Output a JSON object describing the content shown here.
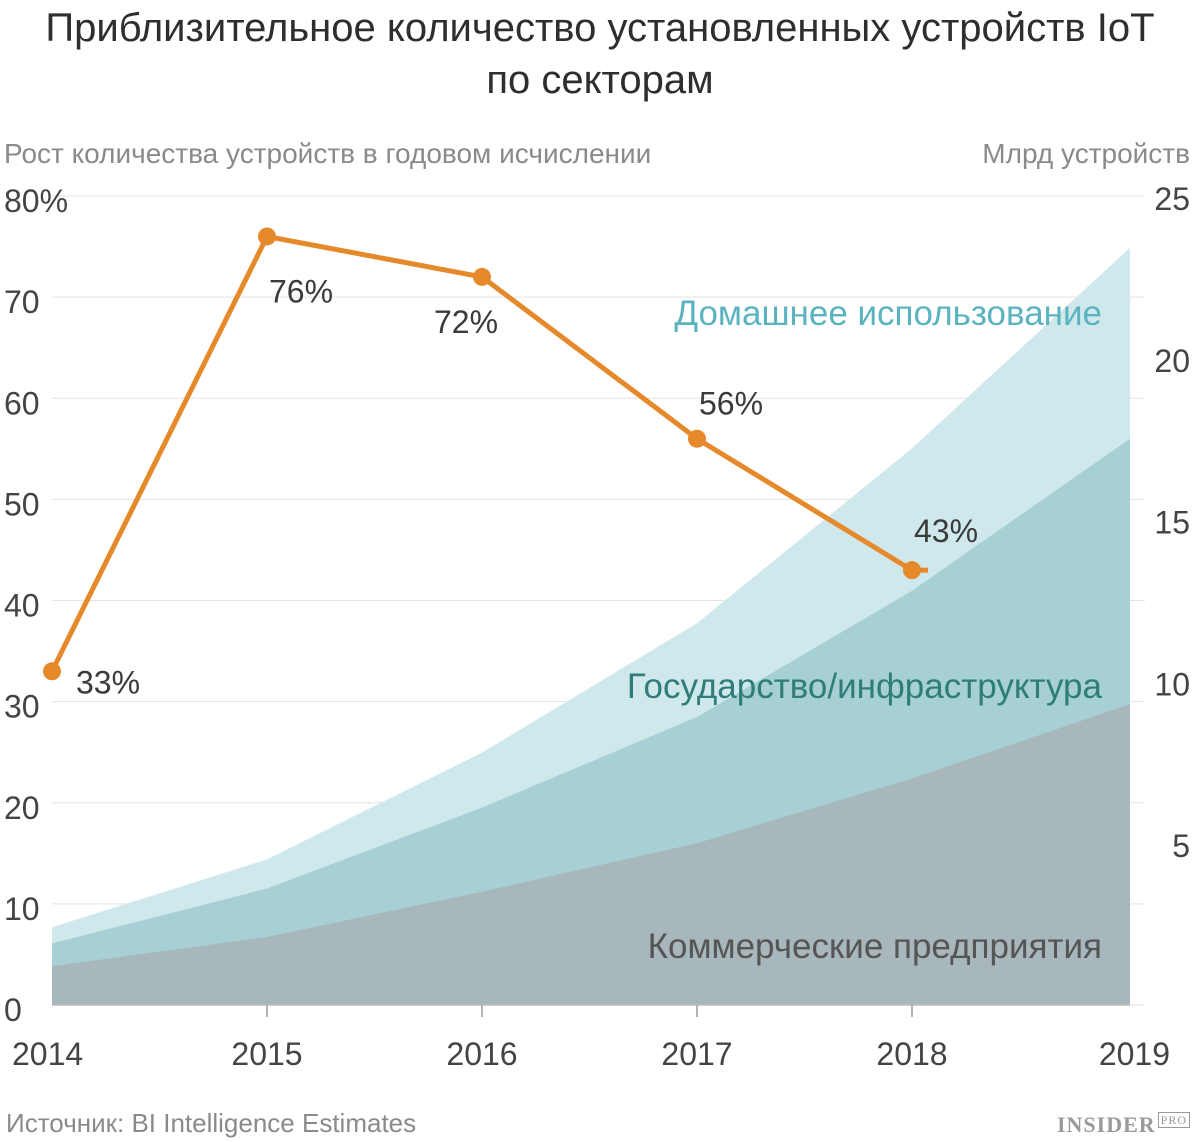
{
  "title_line1": "Приблизительное количество установленных устройств IoT",
  "title_line2": "по секторам",
  "left_axis_label": "Рост количества устройств в годовом исчислении",
  "right_axis_label": "Млрд устройств",
  "source": "Источник: BI Intelligence Estimates",
  "brand": "INSIDER",
  "brand_sup": "PRO",
  "chart_data": {
    "type": "area",
    "x": [
      "2014",
      "2015",
      "2016",
      "2017",
      "2018",
      "2019"
    ],
    "left_axis": {
      "ylim": [
        0,
        80
      ],
      "ticks": [
        "80%",
        "70",
        "60",
        "50",
        "40",
        "30",
        "20",
        "10",
        "0"
      ]
    },
    "right_axis": {
      "ylim": [
        0,
        25
      ],
      "ticks": [
        "25",
        "20",
        "15",
        "10",
        "5"
      ]
    },
    "areas": [
      {
        "name": "Домашнее использование",
        "color": "#cfe8ec",
        "label_color": "#5bb3bf",
        "x": [
          2014,
          2015,
          2016,
          2017,
          2018,
          2019
        ],
        "values": [
          2.4,
          4.5,
          7.8,
          11.8,
          17.2,
          23.4
        ]
      },
      {
        "name": "Государство/инфраструктура",
        "color": "#a6d0d4",
        "label_color": "#2f7d78",
        "x": [
          2014,
          2015,
          2016,
          2017,
          2018,
          2019
        ],
        "values": [
          1.9,
          3.6,
          6.1,
          8.9,
          12.8,
          17.5
        ]
      },
      {
        "name": "Коммерческие предприятия",
        "color": "#a8b7bb",
        "label_color": "#555555",
        "x": [
          2014,
          2015,
          2016,
          2017,
          2018,
          2019
        ],
        "values": [
          1.2,
          2.1,
          3.5,
          5.0,
          7.0,
          9.3
        ]
      }
    ],
    "line": {
      "color": "#e6892a",
      "x": [
        2014,
        2015,
        2016,
        2017,
        2018
      ],
      "values": [
        33,
        76,
        72,
        56,
        43
      ],
      "labels": [
        "33%",
        "76%",
        "72%",
        "56%",
        "43%"
      ]
    }
  }
}
